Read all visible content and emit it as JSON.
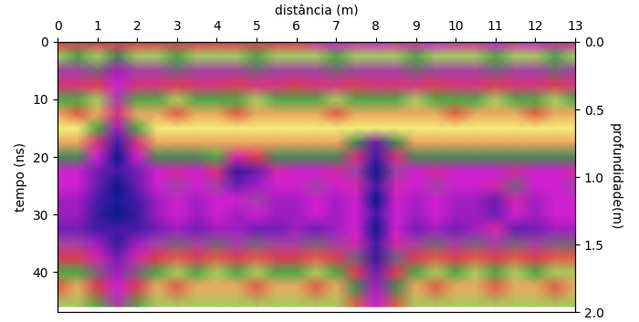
{
  "chart_data": {
    "type": "heatmap",
    "x_label": "distância (m)",
    "y_label": "tempo (ns)",
    "y2_label": "profundidade(m)",
    "x": [
      0,
      0.5,
      1,
      1.5,
      2,
      2.5,
      3,
      3.5,
      4,
      4.5,
      5,
      5.5,
      6,
      6.5,
      7,
      7.5,
      8,
      8.5,
      9,
      9.5,
      10,
      10.5,
      11,
      11.5,
      12,
      12.5,
      13
    ],
    "y": [
      0,
      2.5,
      5,
      7.5,
      10,
      12.5,
      15,
      17.5,
      20,
      22.5,
      25,
      27.5,
      30,
      32.5,
      35,
      37.5,
      40,
      42.5,
      46
    ],
    "cells": [
      [
        0.3,
        0.3,
        0.3,
        0.3,
        0.3,
        0.3,
        0.3,
        0.3,
        0.3,
        0.3,
        0.3,
        0.3,
        0.3,
        0.5,
        0.6,
        0.5,
        0.6,
        0.5,
        0.5,
        0.6,
        0.5,
        0.5,
        0.6,
        0.5,
        0.6,
        0.5,
        0.5
      ],
      [
        -0.1,
        -0.2,
        -0.1,
        -0.3,
        -0.1,
        -0.1,
        -0.2,
        -0.1,
        -0.1,
        -0.1,
        -0.2,
        -0.1,
        -0.1,
        -0.1,
        -0.2,
        -0.1,
        -0.1,
        -0.1,
        -0.2,
        -0.1,
        -0.1,
        -0.1,
        -0.2,
        -0.1,
        -0.1,
        -0.2,
        -0.1
      ],
      [
        -0.5,
        -0.5,
        -0.4,
        -0.7,
        -0.5,
        -0.5,
        -0.4,
        -0.5,
        -0.5,
        -0.5,
        -0.4,
        -0.5,
        -0.5,
        -0.5,
        -0.4,
        -0.5,
        -0.5,
        -0.5,
        -0.4,
        -0.5,
        -0.5,
        -0.5,
        -0.4,
        -0.5,
        -0.5,
        -0.4,
        -0.5
      ],
      [
        0.4,
        0.4,
        0.3,
        0.6,
        0.4,
        0.4,
        0.3,
        0.4,
        0.4,
        0.3,
        0.4,
        0.4,
        0.3,
        0.4,
        0.4,
        0.3,
        0.4,
        0.4,
        0.4,
        0.3,
        0.4,
        0.4,
        0.3,
        0.4,
        0.4,
        0.3,
        0.4
      ],
      [
        -0.2,
        -0.2,
        -0.1,
        -0.5,
        -0.2,
        -0.2,
        -0.1,
        -0.2,
        -0.2,
        -0.2,
        -0.1,
        -0.2,
        -0.2,
        -0.2,
        -0.1,
        -0.2,
        -0.2,
        -0.2,
        -0.1,
        -0.2,
        -0.2,
        -0.2,
        -0.1,
        -0.2,
        -0.2,
        -0.1,
        -0.2
      ],
      [
        0.1,
        0.2,
        0.1,
        0.4,
        0.1,
        0.1,
        0.2,
        0.1,
        0.1,
        0.2,
        0.1,
        0.1,
        0.1,
        0.1,
        0.2,
        0.1,
        0.1,
        0.1,
        0.1,
        0.1,
        0.2,
        0.1,
        0.1,
        0.1,
        0.2,
        0.1,
        0.1
      ],
      [
        0.0,
        0.0,
        -0.2,
        -0.7,
        -0.2,
        0.0,
        0.0,
        0.0,
        0.0,
        0.0,
        0.0,
        0.0,
        0.0,
        0.0,
        0.0,
        0.0,
        0.0,
        0.0,
        0.0,
        0.0,
        0.0,
        0.0,
        0.0,
        0.0,
        0.0,
        0.0,
        0.0
      ],
      [
        0.1,
        0.1,
        0.4,
        0.9,
        0.4,
        0.1,
        0.1,
        0.1,
        0.1,
        0.1,
        0.1,
        0.1,
        0.1,
        0.1,
        0.1,
        -0.3,
        -0.8,
        -0.3,
        0.1,
        0.1,
        0.1,
        0.1,
        0.1,
        0.1,
        0.1,
        0.1,
        0.1
      ],
      [
        -0.3,
        -0.3,
        -0.6,
        -1.0,
        -0.6,
        -0.3,
        -0.3,
        -0.3,
        -0.2,
        0.5,
        0.3,
        -0.3,
        -0.3,
        -0.3,
        -0.3,
        0.4,
        0.9,
        0.4,
        -0.3,
        -0.3,
        -0.3,
        -0.3,
        -0.3,
        -0.3,
        -0.3,
        -0.3,
        -0.3
      ],
      [
        0.6,
        0.6,
        0.8,
        0.9,
        0.8,
        0.6,
        0.5,
        0.6,
        0.4,
        -0.9,
        -0.8,
        0.5,
        0.6,
        0.6,
        0.5,
        -0.5,
        -1.0,
        -0.5,
        0.6,
        0.5,
        0.6,
        0.6,
        0.6,
        0.5,
        0.6,
        0.6,
        0.5
      ],
      [
        -0.6,
        -0.6,
        -0.8,
        -1.0,
        -0.8,
        -0.6,
        -0.5,
        -0.6,
        -0.5,
        0.8,
        0.7,
        -0.6,
        -0.6,
        -0.5,
        -0.6,
        0.5,
        0.9,
        0.5,
        -0.6,
        -0.5,
        -0.6,
        -0.6,
        0.5,
        -0.4,
        -0.6,
        -0.6,
        -0.5
      ],
      [
        0.7,
        0.7,
        0.9,
        1.0,
        0.9,
        0.7,
        0.6,
        0.7,
        0.6,
        -0.6,
        -0.5,
        0.7,
        0.7,
        0.6,
        0.7,
        -0.6,
        -1.0,
        -0.6,
        0.7,
        0.6,
        0.7,
        0.7,
        -0.8,
        0.5,
        0.7,
        0.6,
        0.6
      ],
      [
        -0.7,
        -0.7,
        -0.9,
        -1.0,
        -0.9,
        -0.7,
        -0.6,
        -0.7,
        -0.6,
        -0.7,
        -0.6,
        -0.7,
        -0.7,
        -0.6,
        -0.7,
        0.6,
        0.9,
        0.6,
        -0.7,
        -0.6,
        -0.7,
        -0.7,
        0.8,
        -0.6,
        -0.7,
        -0.6,
        -0.6
      ],
      [
        0.8,
        0.8,
        0.9,
        0.9,
        0.9,
        0.8,
        0.7,
        0.8,
        0.7,
        0.7,
        0.8,
        0.8,
        0.7,
        0.8,
        0.7,
        -0.6,
        -1.0,
        -0.6,
        0.8,
        0.7,
        0.8,
        0.7,
        0.5,
        -0.8,
        0.8,
        0.7,
        0.7
      ],
      [
        -0.5,
        -0.5,
        -0.7,
        -0.9,
        -0.7,
        -0.5,
        -0.4,
        -0.5,
        -0.4,
        -0.5,
        -0.4,
        -0.5,
        -0.5,
        -0.4,
        -0.5,
        0.5,
        0.9,
        0.5,
        -0.5,
        -0.4,
        -0.5,
        -0.4,
        -0.5,
        -0.4,
        -0.5,
        -0.4,
        -0.4
      ],
      [
        0.3,
        0.3,
        0.5,
        0.8,
        0.5,
        0.3,
        0.2,
        0.3,
        0.2,
        0.3,
        0.2,
        0.3,
        0.3,
        0.2,
        0.3,
        -0.4,
        -0.9,
        -0.4,
        0.3,
        0.2,
        0.3,
        0.2,
        0.3,
        0.2,
        0.3,
        0.2,
        0.2
      ],
      [
        -0.2,
        -0.2,
        -0.4,
        -0.7,
        -0.4,
        -0.2,
        -0.1,
        -0.2,
        -0.1,
        -0.2,
        -0.1,
        -0.2,
        -0.2,
        -0.1,
        -0.2,
        0.3,
        0.8,
        0.3,
        -0.2,
        -0.1,
        -0.2,
        -0.1,
        -0.2,
        -0.1,
        -0.2,
        -0.1,
        -0.1
      ],
      [
        0.2,
        0.1,
        0.3,
        0.6,
        0.3,
        0.1,
        0.2,
        0.1,
        0.1,
        0.1,
        0.2,
        0.1,
        0.1,
        0.2,
        0.1,
        -0.3,
        -0.7,
        -0.3,
        0.1,
        0.2,
        0.1,
        0.1,
        0.2,
        0.1,
        0.1,
        0.2,
        0.1
      ],
      [
        -0.1,
        -0.1,
        -0.2,
        -0.5,
        -0.2,
        -0.1,
        -0.1,
        -0.1,
        -0.1,
        -0.1,
        -0.1,
        -0.1,
        -0.1,
        -0.1,
        -0.1,
        0.2,
        0.6,
        0.2,
        -0.1,
        -0.1,
        -0.1,
        -0.1,
        -0.1,
        -0.1,
        -0.1,
        -0.1,
        -0.1
      ]
    ],
    "color_range": [
      -1,
      1
    ],
    "xlim": [
      0,
      13
    ],
    "xticks": [
      0,
      1,
      2,
      3,
      4,
      5,
      6,
      7,
      8,
      9,
      10,
      11,
      12,
      13
    ],
    "ylim": [
      47,
      0
    ],
    "yticks": [
      0,
      10,
      20,
      30,
      40
    ],
    "y2lim": [
      2.0,
      0.0
    ],
    "y2ticks": [
      {
        "value": 0.0,
        "label": "0.0"
      },
      {
        "value": 0.5,
        "label": "0.5"
      },
      {
        "value": 1.0,
        "label": "1.0"
      },
      {
        "value": 1.5,
        "label": "1.5"
      },
      {
        "value": 2.0,
        "label": "2.0"
      }
    ]
  }
}
